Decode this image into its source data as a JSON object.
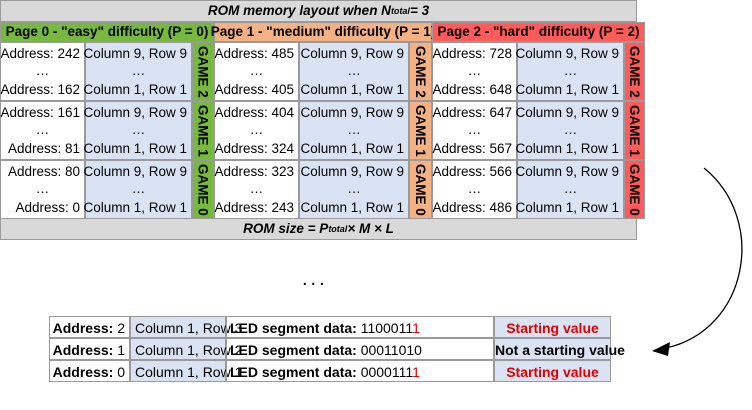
{
  "top": {
    "title_prefix": "ROM memory layout when N",
    "title_sub": "total",
    "title_suffix": " = 3",
    "footer_prefix": "ROM size = P",
    "footer_sub": "total",
    "footer_suffix": " × M × L"
  },
  "pages": [
    {
      "header": "Page 0 - \"easy\" difficulty (P = 0)",
      "color": "#77b83e",
      "games": [
        {
          "label": "GAME 2",
          "addr_hi": "Address: 242",
          "addr_lo": "Address: 162",
          "col_hi": "Column 9, Row 9",
          "col_lo": "Column 1, Row 1"
        },
        {
          "label": "GAME 1",
          "addr_hi": "Address: 161",
          "addr_lo": "Address: 81",
          "col_hi": "Column 9, Row 9",
          "col_lo": "Column 1, Row 1"
        },
        {
          "label": "GAME 0",
          "addr_hi": "Address: 80",
          "addr_lo": "Address: 0",
          "col_hi": "Column 9, Row 9",
          "col_lo": "Column 1, Row 1"
        }
      ]
    },
    {
      "header": "Page 1 - \"medium\" difficulty (P = 1)",
      "color": "#f4b183",
      "games": [
        {
          "label": "GAME 2",
          "addr_hi": "Address: 485",
          "addr_lo": "Address: 405",
          "col_hi": "Column 9, Row 9",
          "col_lo": "Column 1, Row 1"
        },
        {
          "label": "GAME 1",
          "addr_hi": "Address: 404",
          "addr_lo": "Address: 324",
          "col_hi": "Column 9, Row 9",
          "col_lo": "Column 1, Row 1"
        },
        {
          "label": "GAME 0",
          "addr_hi": "Address: 323",
          "addr_lo": "Address: 243",
          "col_hi": "Column 9, Row 9",
          "col_lo": "Column 1, Row 1"
        }
      ]
    },
    {
      "header": "Page 2 - \"hard\" difficulty (P = 2)",
      "color": "#ff5b5b",
      "games": [
        {
          "label": "GAME 2",
          "addr_hi": "Address: 728",
          "addr_lo": "Address: 648",
          "col_hi": "Column 9, Row 9",
          "col_lo": "Column 1, Row 1"
        },
        {
          "label": "GAME 1",
          "addr_hi": "Address: 647",
          "addr_lo": "Address: 567",
          "col_hi": "Column 9, Row 9",
          "col_lo": "Column 1, Row 1"
        },
        {
          "label": "GAME 0",
          "addr_hi": "Address: 566",
          "addr_lo": "Address: 486",
          "col_hi": "Column 9, Row 9",
          "col_lo": "Column 1, Row 1"
        }
      ]
    }
  ],
  "ellipsis": "…",
  "gap_dots": "...",
  "detail_rows": [
    {
      "address_label": "Address:",
      "address_value": "2",
      "location": "Column 1, Row 3",
      "led_label": "LED segment data:",
      "led_main": "1100011",
      "led_last": "1",
      "status": "Starting value",
      "status_color": "#e00000"
    },
    {
      "address_label": "Address:",
      "address_value": "1",
      "location": "Column 1, Row 2",
      "led_label": "LED segment data:",
      "led_main": "00011010",
      "led_last": "",
      "status": "Not a starting value",
      "status_color": "#000000"
    },
    {
      "address_label": "Address:",
      "address_value": "0",
      "location": "Column 1, Row 1",
      "led_label": "LED segment data:",
      "led_main": "0000111",
      "led_last": "1",
      "status": "Starting value",
      "status_color": "#e00000"
    }
  ],
  "colors": {
    "title_bar": "#d9d9d9",
    "address_col": "#ffffff",
    "column_col": "#dae3f3",
    "starting_red": "#e00000",
    "arrow": "#000000"
  }
}
